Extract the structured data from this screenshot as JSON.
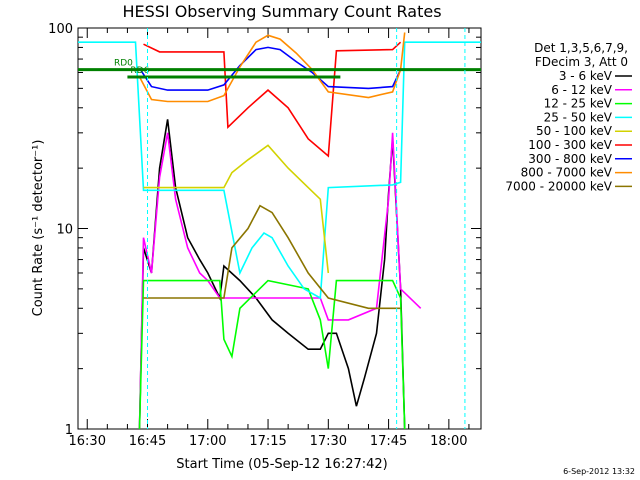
{
  "chart_data": {
    "type": "line",
    "title": "HESSI Observing Summary Count Rates",
    "xlabel": "Start Time (05-Sep-12 16:27:42)",
    "ylabel": "Count Rate (s⁻¹ detector⁻¹)",
    "y_scale": "log",
    "ylim": [
      1,
      100
    ],
    "xlim": [
      "16:27:42",
      "18:08:00"
    ],
    "x_ticks": [
      "16:30",
      "16:45",
      "17:00",
      "17:15",
      "17:30",
      "17:45",
      "18:00"
    ],
    "y_ticks": [
      "1",
      "10",
      "100"
    ],
    "grid": false,
    "legend_position": "right",
    "legend_header": [
      "Det 1,3,5,6,7,9,",
      "FDecim 3, Att 0"
    ],
    "footer_date": "6-Sep-2012 13:32",
    "series": [
      {
        "name": "3 - 6 keV",
        "color": "#000000",
        "points": [
          [
            "16:43",
            1.0
          ],
          [
            "16:44",
            8
          ],
          [
            "16:46",
            6
          ],
          [
            "16:48",
            20
          ],
          [
            "16:50",
            35
          ],
          [
            "16:52",
            16
          ],
          [
            "16:55",
            9
          ],
          [
            "16:58",
            7
          ],
          [
            "17:00",
            6
          ],
          [
            "17:03",
            4.5
          ],
          [
            "17:04",
            6.5
          ],
          [
            "17:08",
            5.5
          ],
          [
            "17:12",
            4.5
          ],
          [
            "17:16",
            3.5
          ],
          [
            "17:20",
            3
          ],
          [
            "17:25",
            2.5
          ],
          [
            "17:28",
            2.5
          ],
          [
            "17:30",
            3
          ],
          [
            "17:32",
            3
          ],
          [
            "17:35",
            2
          ],
          [
            "17:37",
            1.3
          ],
          [
            "17:39",
            1.8
          ],
          [
            "17:42",
            3
          ],
          [
            "17:44",
            7
          ],
          [
            "17:45",
            15
          ],
          [
            "17:46",
            28
          ],
          [
            "17:48",
            5
          ],
          [
            "17:49",
            1.0
          ]
        ]
      },
      {
        "name": "6 - 12 keV",
        "color": "#ff00ff",
        "points": [
          [
            "16:43",
            1.0
          ],
          [
            "16:44",
            9
          ],
          [
            "16:46",
            6
          ],
          [
            "16:48",
            18
          ],
          [
            "16:50",
            30
          ],
          [
            "16:52",
            14
          ],
          [
            "16:55",
            8
          ],
          [
            "16:58",
            6
          ],
          [
            "17:00",
            5.5
          ],
          [
            "17:03",
            4.5
          ],
          [
            "17:04",
            4.5
          ],
          [
            "17:10",
            4.5
          ],
          [
            "17:20",
            4.5
          ],
          [
            "17:28",
            4.5
          ],
          [
            "17:30",
            3.5
          ],
          [
            "17:35",
            3.5
          ],
          [
            "17:42",
            4
          ],
          [
            "17:45",
            14
          ],
          [
            "17:46",
            30
          ],
          [
            "17:48",
            5
          ],
          [
            "17:53",
            4
          ]
        ]
      },
      {
        "name": "12 - 25 keV",
        "color": "#00ff00",
        "points": [
          [
            "16:43",
            1.0
          ],
          [
            "16:44",
            5.5
          ],
          [
            "16:50",
            5.5
          ],
          [
            "17:00",
            5.5
          ],
          [
            "17:03",
            5.5
          ],
          [
            "17:04",
            2.8
          ],
          [
            "17:06",
            2.3
          ],
          [
            "17:08",
            4
          ],
          [
            "17:15",
            5.5
          ],
          [
            "17:25",
            5
          ],
          [
            "17:28",
            3.5
          ],
          [
            "17:30",
            2
          ],
          [
            "17:32",
            5.5
          ],
          [
            "17:40",
            5.5
          ],
          [
            "17:46",
            5.5
          ],
          [
            "17:48",
            4.5
          ],
          [
            "17:49",
            1.0
          ]
        ]
      },
      {
        "name": "25 - 50 keV",
        "color": "#00ffff",
        "points": [
          [
            "16:27:42",
            85
          ],
          [
            "16:42",
            85
          ],
          [
            "16:44",
            15.5
          ],
          [
            "17:00",
            15.5
          ],
          [
            "17:04",
            15.5
          ],
          [
            "17:08",
            6
          ],
          [
            "17:11",
            8
          ],
          [
            "17:14",
            9.5
          ],
          [
            "17:16",
            9
          ],
          [
            "17:20",
            6.5
          ],
          [
            "17:24",
            5
          ],
          [
            "17:28",
            4.5
          ],
          [
            "17:30",
            16
          ],
          [
            "17:46",
            16.5
          ],
          [
            "17:48",
            17
          ],
          [
            "17:49",
            85
          ],
          [
            "18:08",
            85
          ]
        ]
      },
      {
        "name": "50 - 100 keV",
        "color": "#d2d200",
        "points": [
          [
            "16:44",
            16
          ],
          [
            "17:04",
            16
          ],
          [
            "17:06",
            19
          ],
          [
            "17:10",
            22
          ],
          [
            "17:15",
            26
          ],
          [
            "17:20",
            20
          ],
          [
            "17:25",
            16
          ],
          [
            "17:28",
            14
          ],
          [
            "17:30",
            6
          ]
        ]
      },
      {
        "name": "100 - 300 keV",
        "color": "#ff0000",
        "points": [
          [
            "16:44",
            83
          ],
          [
            "16:48",
            76
          ],
          [
            "17:00",
            76
          ],
          [
            "17:04",
            76
          ],
          [
            "17:05",
            32
          ],
          [
            "17:10",
            40
          ],
          [
            "17:15",
            49
          ],
          [
            "17:20",
            40
          ],
          [
            "17:25",
            28
          ],
          [
            "17:30",
            23
          ],
          [
            "17:32",
            77
          ],
          [
            "17:46",
            78
          ],
          [
            "17:48",
            85
          ]
        ]
      },
      {
        "name": "300 - 800 keV",
        "color": "#0000ff",
        "points": [
          [
            "16:43",
            63
          ],
          [
            "16:46",
            51
          ],
          [
            "16:50",
            49
          ],
          [
            "17:00",
            49
          ],
          [
            "17:04",
            52
          ],
          [
            "17:08",
            65
          ],
          [
            "17:12",
            78
          ],
          [
            "17:15",
            80
          ],
          [
            "17:18",
            78
          ],
          [
            "17:22",
            68
          ],
          [
            "17:26",
            60
          ],
          [
            "17:30",
            51
          ],
          [
            "17:40",
            50
          ],
          [
            "17:46",
            51
          ],
          [
            "17:48",
            62
          ]
        ]
      },
      {
        "name": "800 - 7000 keV",
        "color": "#ff8c00",
        "points": [
          [
            "16:43",
            57
          ],
          [
            "16:46",
            44
          ],
          [
            "16:50",
            43
          ],
          [
            "17:00",
            43
          ],
          [
            "17:04",
            46
          ],
          [
            "17:08",
            64
          ],
          [
            "17:12",
            85
          ],
          [
            "17:15",
            92
          ],
          [
            "17:18",
            88
          ],
          [
            "17:22",
            75
          ],
          [
            "17:26",
            62
          ],
          [
            "17:30",
            48
          ],
          [
            "17:40",
            45
          ],
          [
            "17:46",
            48
          ],
          [
            "17:48",
            62
          ],
          [
            "17:49",
            95
          ]
        ]
      },
      {
        "name": "7000 - 20000 keV",
        "color": "#8b7500",
        "points": [
          [
            "16:44",
            4.5
          ],
          [
            "17:04",
            4.5
          ],
          [
            "17:06",
            8
          ],
          [
            "17:10",
            10
          ],
          [
            "17:13",
            13
          ],
          [
            "17:16",
            12
          ],
          [
            "17:20",
            9
          ],
          [
            "17:25",
            6
          ],
          [
            "17:30",
            4.5
          ],
          [
            "17:40",
            4
          ],
          [
            "17:48",
            4
          ]
        ]
      }
    ],
    "attenuator_lines": [
      {
        "label": "RD0",
        "color": "#008000",
        "y": 62,
        "from": "16:27:42",
        "to": "18:08:00"
      },
      {
        "label": "RD6",
        "color": "#008000",
        "y": 57,
        "from": "16:40",
        "to": "17:33"
      }
    ],
    "markers": [
      {
        "time": "16:45",
        "color": "#00ffff"
      },
      {
        "time": "17:47",
        "color": "#00ffff"
      },
      {
        "time": "18:04",
        "color": "#00ffff"
      }
    ]
  }
}
